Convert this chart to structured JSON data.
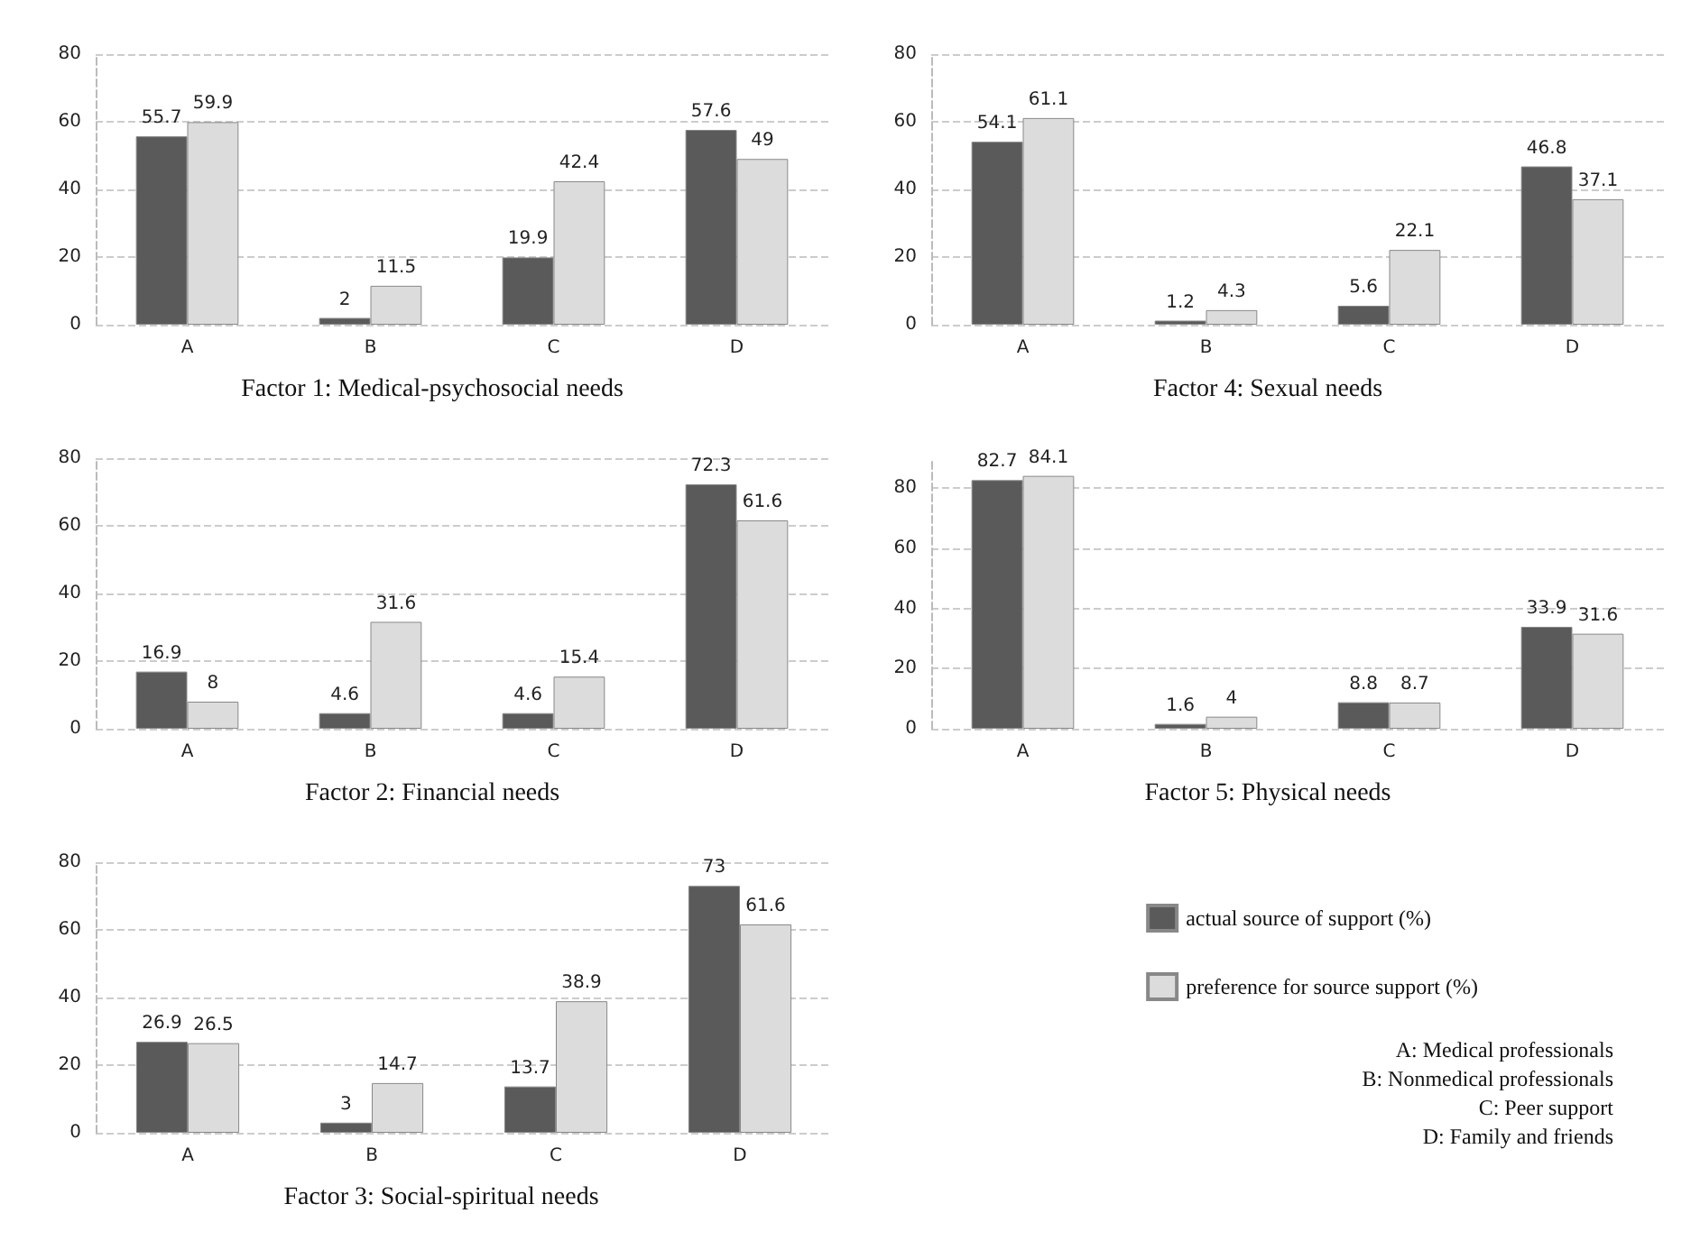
{
  "chart_data": [
    {
      "type": "bar",
      "title": "Factor 1: Medical-psychosocial needs",
      "categories": [
        "A",
        "B",
        "C",
        "D"
      ],
      "series": [
        {
          "color": "#5a5a5a",
          "values": [
            55.7,
            2,
            19.9,
            57.6
          ]
        },
        {
          "color": "#dcdcdc",
          "values": [
            59.9,
            11.5,
            42.4,
            49
          ]
        }
      ],
      "ylim": [
        0,
        80
      ],
      "yticks": [
        0,
        20,
        40,
        60,
        80
      ],
      "data_labels": true,
      "grid": "y",
      "legend": false
    },
    {
      "type": "bar",
      "title": "Factor 4: Sexual needs",
      "categories": [
        "A",
        "B",
        "C",
        "D"
      ],
      "series": [
        {
          "color": "#5a5a5a",
          "values": [
            54.1,
            1.2,
            5.6,
            46.8
          ]
        },
        {
          "color": "#dcdcdc",
          "values": [
            61.1,
            4.3,
            22.1,
            37.1
          ]
        }
      ],
      "ylim": [
        0,
        80
      ],
      "yticks": [
        0,
        20,
        40,
        60,
        80
      ],
      "data_labels": true,
      "grid": "y",
      "legend": false
    },
    {
      "type": "bar",
      "title": "Factor 2: Financial needs",
      "categories": [
        "A",
        "B",
        "C",
        "D"
      ],
      "series": [
        {
          "color": "#5a5a5a",
          "values": [
            16.9,
            4.6,
            4.6,
            72.3
          ]
        },
        {
          "color": "#dcdcdc",
          "values": [
            8,
            31.6,
            15.4,
            61.6
          ]
        }
      ],
      "ylim": [
        0,
        80
      ],
      "yticks": [
        0,
        20,
        40,
        60,
        80
      ],
      "data_labels": true,
      "grid": "y",
      "legend": false
    },
    {
      "type": "bar",
      "title": "Factor 5: Physical needs",
      "categories": [
        "A",
        "B",
        "C",
        "D"
      ],
      "series": [
        {
          "color": "#5a5a5a",
          "values": [
            82.7,
            1.6,
            8.8,
            33.9
          ]
        },
        {
          "color": "#dcdcdc",
          "values": [
            84.1,
            4,
            8.7,
            31.6
          ]
        }
      ],
      "ylim": [
        0,
        90
      ],
      "yticks": [
        0,
        20,
        40,
        60,
        80
      ],
      "data_labels": true,
      "grid": "y",
      "legend": false
    },
    {
      "type": "bar",
      "title": "Factor 3: Social-spiritual needs",
      "categories": [
        "A",
        "B",
        "C",
        "D"
      ],
      "series": [
        {
          "name": "actual source of support (%)",
          "color": "#5a5a5a",
          "values": [
            26.9,
            3,
            13.7,
            73
          ]
        },
        {
          "name": "preference for source support (%)",
          "color": "#dcdcdc",
          "values": [
            26.5,
            14.7,
            38.9,
            61.6
          ]
        }
      ],
      "ylim": [
        0,
        80
      ],
      "yticks": [
        0,
        20,
        40,
        60,
        80
      ],
      "data_labels": true,
      "grid": "y",
      "legend": "right",
      "annotations": [
        "A: Medical professionals",
        "B: Nonmedical professionals",
        "C: Peer support",
        "D: Family and friends"
      ]
    }
  ]
}
